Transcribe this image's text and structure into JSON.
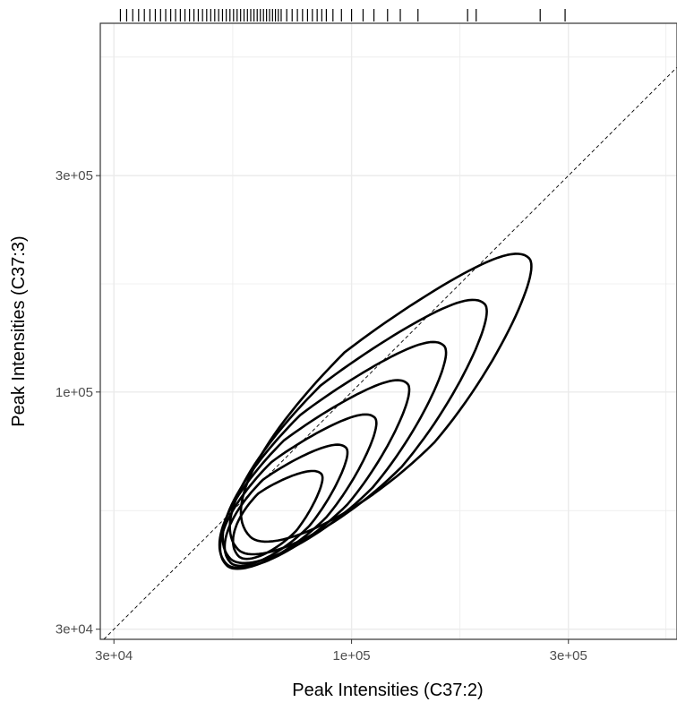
{
  "chart_data": {
    "type": "contour",
    "xlabel": "Peak Intensities (C37:2)",
    "ylabel": "Peak Intensities (C37:3)",
    "x_scale": "log10",
    "y_scale": "log10",
    "xlim": [
      28000,
      520000
    ],
    "ylim": [
      28500,
      650000
    ],
    "x_ticks": [
      {
        "value": 30000,
        "label": "3e+04"
      },
      {
        "value": 100000,
        "label": "1e+05"
      },
      {
        "value": 300000,
        "label": "3e+05"
      }
    ],
    "y_ticks": [
      {
        "value": 30000,
        "label": "3e+04"
      },
      {
        "value": 100000,
        "label": "1e+05"
      },
      {
        "value": 300000,
        "label": "3e+05"
      }
    ],
    "grid": true,
    "reference_line": {
      "style": "dashed",
      "slope": 1,
      "intercept": 0
    },
    "density_peak": {
      "x": 68000,
      "y": 52000
    },
    "contour_levels": 7,
    "rug": {
      "side": "top",
      "x_values": [
        31000,
        32000,
        33000,
        34000,
        35000,
        36000,
        37000,
        38000,
        39000,
        40000,
        41000,
        42000,
        43000,
        44000,
        45000,
        46000,
        47000,
        48000,
        49000,
        50000,
        51000,
        52000,
        53000,
        54000,
        55000,
        56000,
        57000,
        58000,
        59000,
        60000,
        61000,
        62000,
        63000,
        64000,
        65000,
        66000,
        67000,
        68000,
        69000,
        70000,
        72000,
        74000,
        76000,
        78000,
        80000,
        82000,
        84000,
        86000,
        88000,
        91000,
        95000,
        100000,
        106000,
        112000,
        120000,
        128000,
        140000,
        180000,
        188000,
        260000,
        295000
      ]
    },
    "colors": {
      "contour": "#000000",
      "grid": "#ebebeb",
      "panel_border": "#333333",
      "reference_line": "#000000"
    }
  }
}
